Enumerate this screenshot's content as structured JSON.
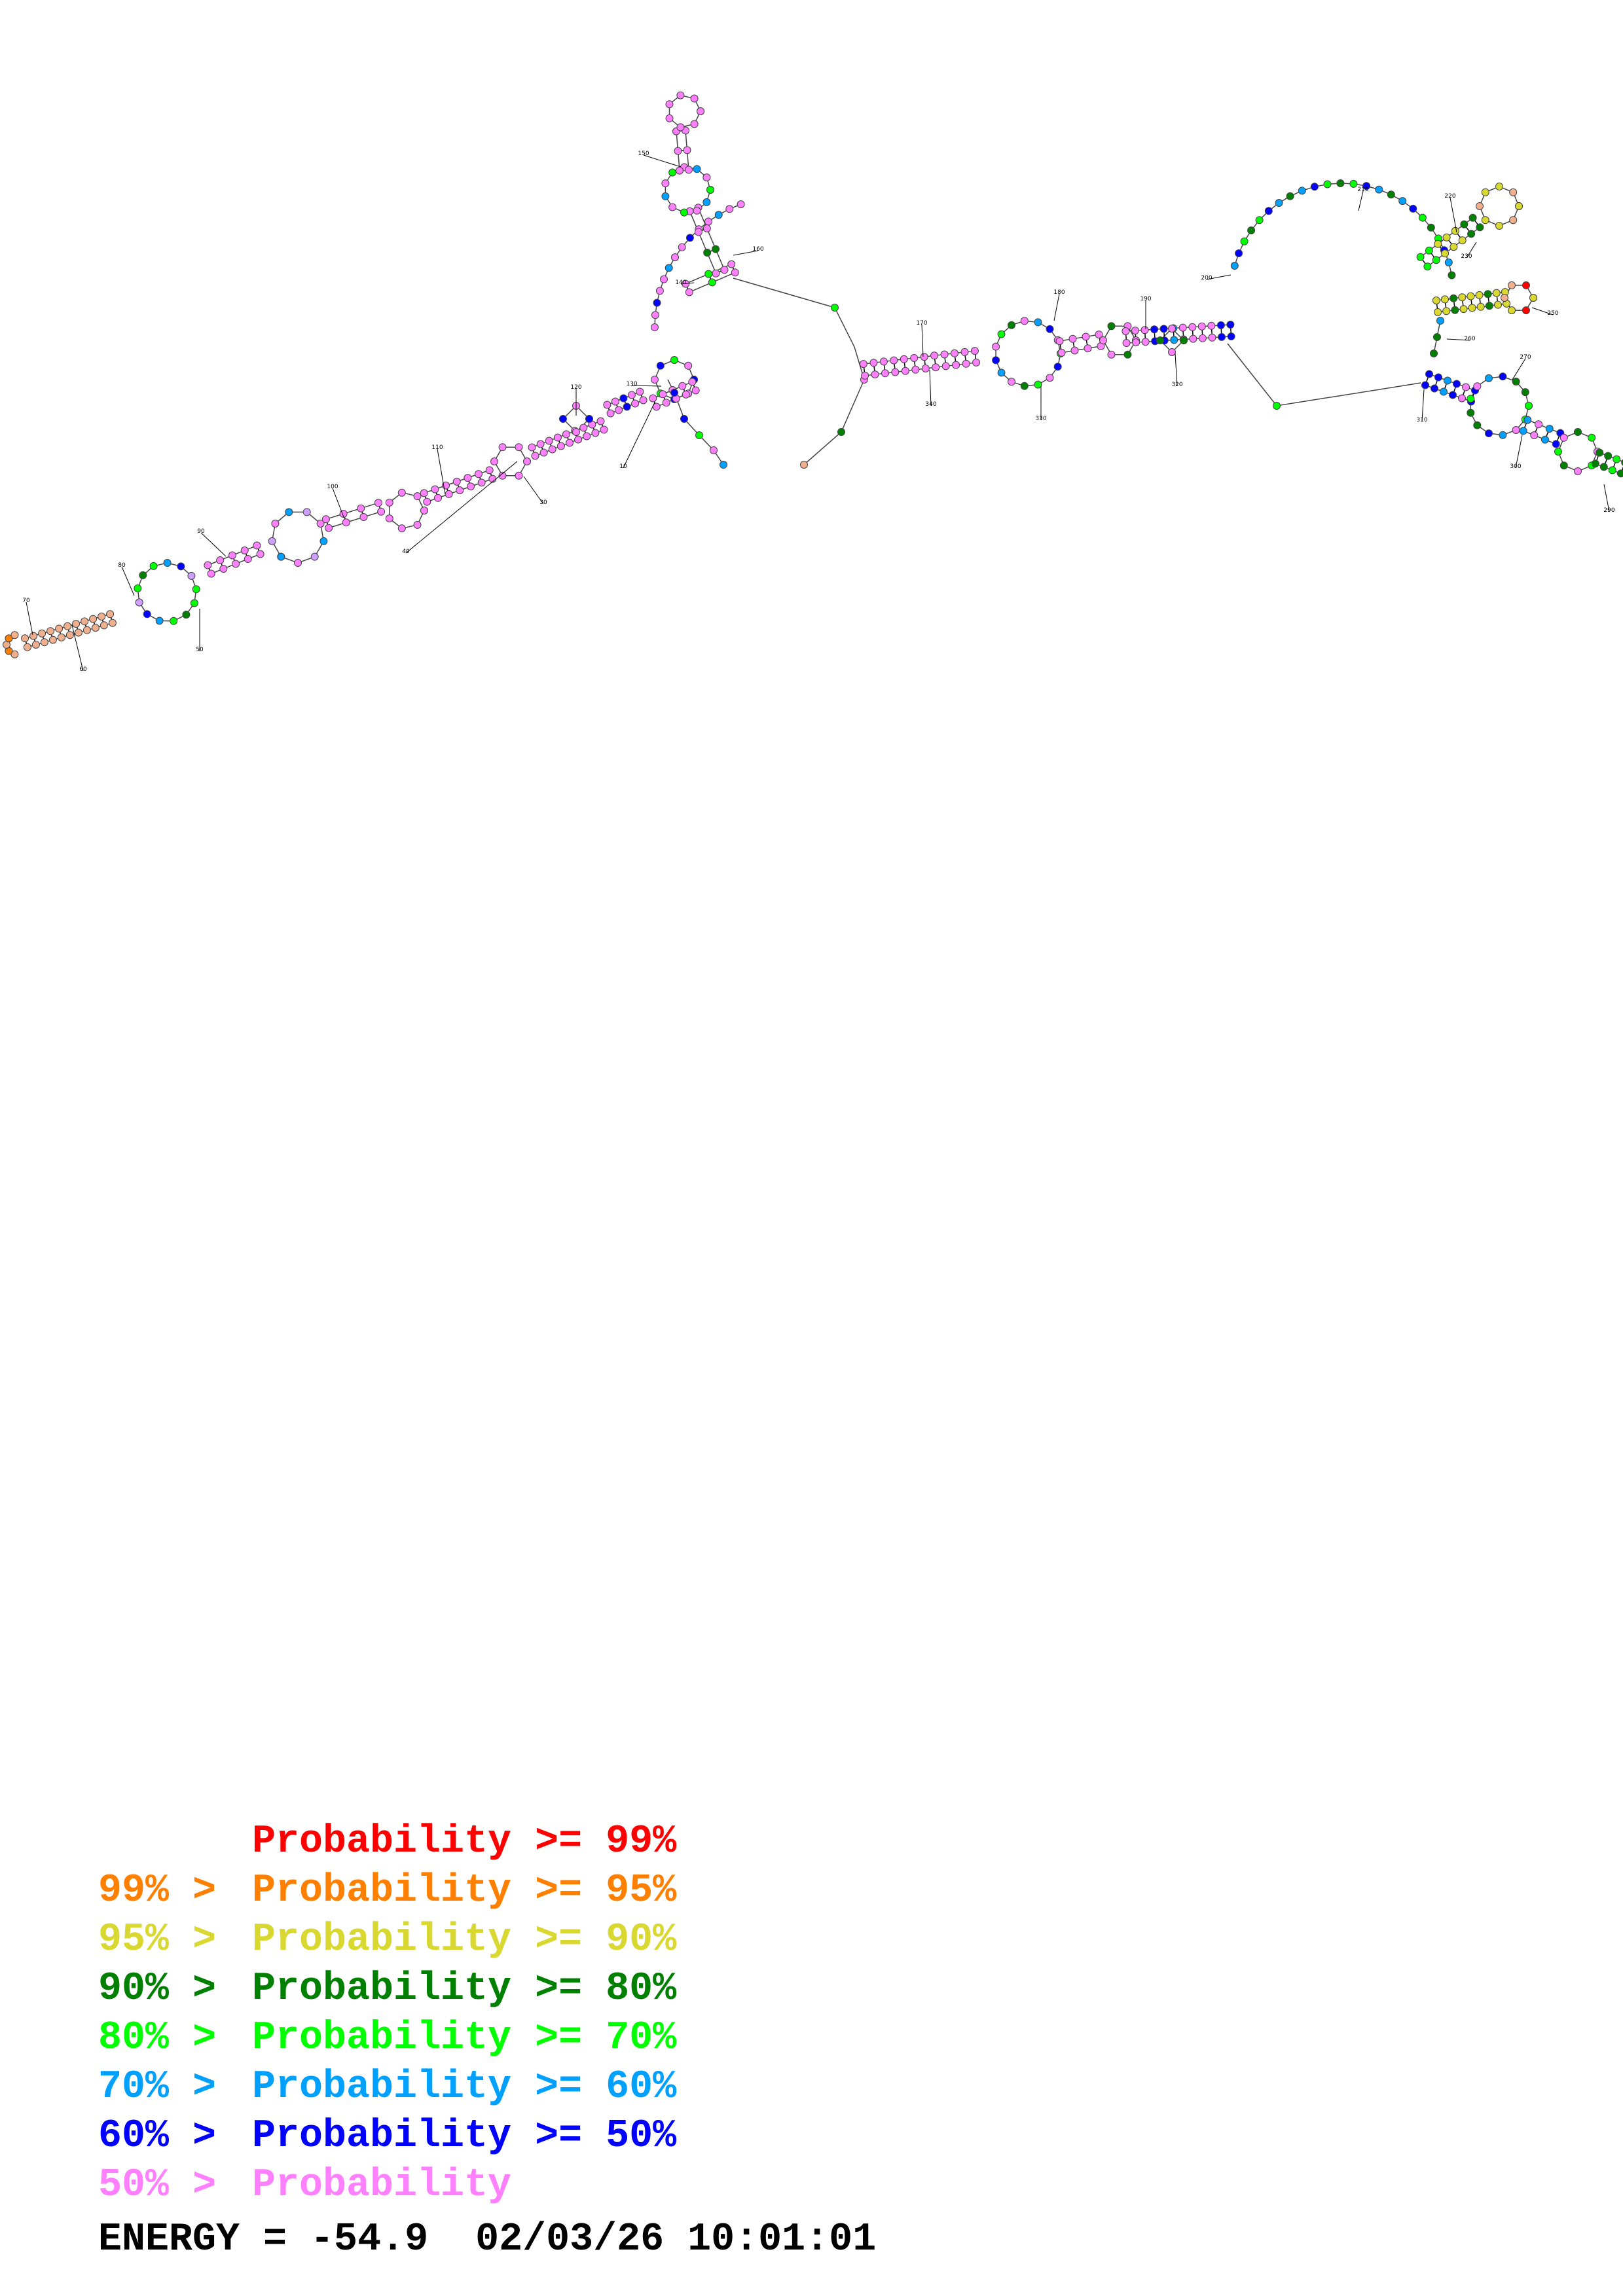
{
  "structure": {
    "position_labels": [
      "10",
      "30",
      "40",
      "50",
      "60",
      "70",
      "80",
      "90",
      "100",
      "110",
      "120",
      "130",
      "140",
      "150",
      "160",
      "170",
      "180",
      "190",
      "200",
      "210",
      "220",
      "230",
      "250",
      "260",
      "270",
      "290",
      "300",
      "310",
      "320",
      "330",
      "340"
    ],
    "stem_color": "#ee82ee",
    "nucleotide_colors": {
      "p99": "#ff0000",
      "p95": "#ff8000",
      "p90": "#d8d830",
      "p80": "#008000",
      "p70": "#00ff00",
      "p60": "#00a0ff",
      "p50": "#0000ff",
      "low": "#ff80ff"
    }
  },
  "legend": [
    {
      "prefix": "",
      "label": "Probability >= 99%",
      "color": "#ff0000"
    },
    {
      "prefix": "99% > ",
      "label": "Probability >= 95%",
      "color": "#ff8000"
    },
    {
      "prefix": "95% > ",
      "label": "Probability >= 90%",
      "color": "#d8d830"
    },
    {
      "prefix": "90% > ",
      "label": "Probability >= 80%",
      "color": "#008000"
    },
    {
      "prefix": "80% > ",
      "label": "Probability >= 70%",
      "color": "#00ff00"
    },
    {
      "prefix": "70% > ",
      "label": "Probability >= 60%",
      "color": "#00a0ff"
    },
    {
      "prefix": "60% > ",
      "label": "Probability >= 50%",
      "color": "#0000ff"
    },
    {
      "prefix": "50% > ",
      "label": "Probability",
      "color": "#ff80ff"
    }
  ],
  "footer": {
    "energy": "ENERGY = -54.9  02/03/26 10:01:01"
  }
}
